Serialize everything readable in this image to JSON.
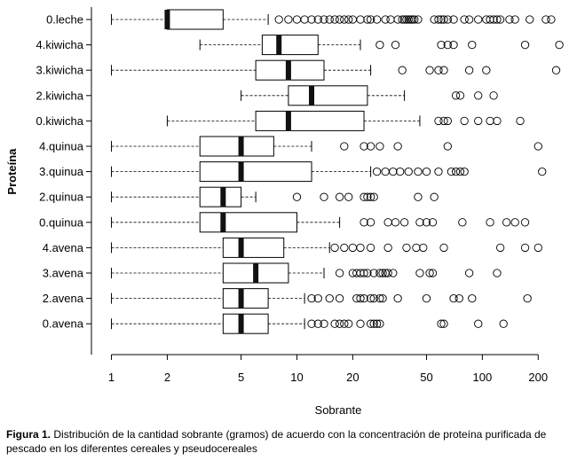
{
  "caption": {
    "label": "Figura 1.",
    "text": "Distribución de la cantidad sobrante (gramos) de acuerdo con la concentración de proteína purificada de pescado en los diferentes cereales y pseudocereales"
  },
  "chart_data": {
    "type": "boxplot",
    "xlabel": "Sobrante",
    "ylabel": "Proteína",
    "xscale": "log",
    "xlim": [
      0.78,
      290
    ],
    "xticks": [
      1,
      2,
      5,
      10,
      20,
      50,
      100,
      200
    ],
    "grid": false,
    "groups": [
      {
        "name": "0.leche",
        "whisker_low": 1,
        "q1": 2,
        "median": 2,
        "q3": 4,
        "whisker_high": 7,
        "outliers": [
          8,
          9,
          10,
          11,
          12,
          13,
          14,
          15,
          16,
          17,
          18,
          19,
          20,
          22,
          24,
          25,
          27,
          30,
          32,
          35,
          37,
          38,
          39,
          40,
          41,
          42,
          43,
          45,
          55,
          58,
          60,
          62,
          65,
          70,
          80,
          85,
          95,
          105,
          110,
          115,
          120,
          125,
          140,
          150,
          180,
          220,
          235
        ]
      },
      {
        "name": "4.kiwicha",
        "whisker_low": 3,
        "q1": 6.5,
        "median": 8,
        "q3": 13,
        "whisker_high": 22,
        "outliers": [
          28,
          34,
          60,
          65,
          70,
          88,
          170,
          260
        ]
      },
      {
        "name": "3.kiwicha",
        "whisker_low": 1,
        "q1": 6,
        "median": 9,
        "q3": 14,
        "whisker_high": 25,
        "outliers": [
          37,
          52,
          58,
          62,
          85,
          105,
          250
        ]
      },
      {
        "name": "2.kiwicha",
        "whisker_low": 5,
        "q1": 9,
        "median": 12,
        "q3": 24,
        "whisker_high": 38,
        "outliers": [
          72,
          76,
          95,
          115
        ]
      },
      {
        "name": "0.kiwicha",
        "whisker_low": 2,
        "q1": 6,
        "median": 9,
        "q3": 23,
        "whisker_high": 46,
        "outliers": [
          58,
          62,
          65,
          80,
          95,
          110,
          120,
          160
        ]
      },
      {
        "name": "4.quinua",
        "whisker_low": 1,
        "q1": 3,
        "median": 5,
        "q3": 7.5,
        "whisker_high": 12,
        "outliers": [
          18,
          23,
          25,
          28,
          35,
          65,
          200
        ]
      },
      {
        "name": "3.quinua",
        "whisker_low": 1,
        "q1": 3,
        "median": 5,
        "q3": 12,
        "whisker_high": 25,
        "outliers": [
          27,
          30,
          33,
          36,
          40,
          45,
          50,
          58,
          68,
          72,
          76,
          80,
          210
        ]
      },
      {
        "name": "2.quinua",
        "whisker_low": 1,
        "q1": 3,
        "median": 4,
        "q3": 5,
        "whisker_high": 6,
        "outliers": [
          10,
          14,
          17,
          19,
          23,
          24,
          25,
          26,
          45,
          55
        ]
      },
      {
        "name": "0.quinua",
        "whisker_low": 1,
        "q1": 3,
        "median": 4,
        "q3": 10,
        "whisker_high": 17,
        "outliers": [
          23,
          25,
          31,
          34,
          38,
          46,
          50,
          54,
          78,
          110,
          135,
          150,
          170
        ]
      },
      {
        "name": "4.avena",
        "whisker_low": 1,
        "q1": 4,
        "median": 5,
        "q3": 8.5,
        "whisker_high": 15,
        "outliers": [
          16,
          18,
          20,
          22,
          25,
          31,
          39,
          44,
          48,
          62,
          125,
          170,
          200
        ]
      },
      {
        "name": "3.avena",
        "whisker_low": 1,
        "q1": 4,
        "median": 6,
        "q3": 9,
        "whisker_high": 14,
        "outliers": [
          17,
          20,
          21,
          22,
          23,
          24,
          26,
          28,
          29,
          30,
          31,
          33,
          46,
          52,
          54,
          85,
          120
        ]
      },
      {
        "name": "2.avena",
        "whisker_low": 1,
        "q1": 4,
        "median": 5,
        "q3": 7,
        "whisker_high": 11,
        "outliers": [
          12,
          13,
          15,
          17,
          21,
          22,
          23,
          25,
          26,
          28,
          29,
          35,
          50,
          70,
          75,
          88,
          175
        ]
      },
      {
        "name": "0.avena",
        "whisker_low": 1,
        "q1": 4,
        "median": 5,
        "q3": 7,
        "whisker_high": 11,
        "outliers": [
          12,
          13,
          14,
          16,
          17,
          18,
          19,
          22,
          25,
          26,
          27,
          28,
          60,
          62,
          95,
          130
        ]
      }
    ]
  }
}
